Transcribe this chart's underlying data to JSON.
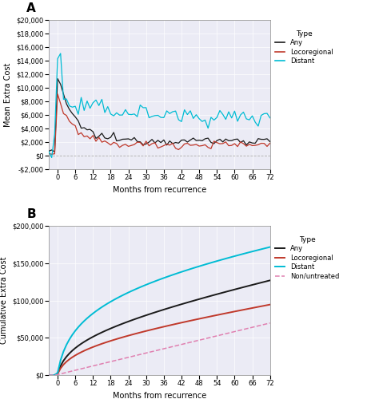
{
  "panel_a": {
    "title": "A",
    "xlabel": "Months from recurrence",
    "ylabel": "Mean Extra Cost",
    "ylim": [
      -2000,
      20000
    ],
    "xlim": [
      -3,
      72
    ],
    "yticks": [
      -2000,
      0,
      2000,
      4000,
      6000,
      8000,
      10000,
      12000,
      14000,
      16000,
      18000,
      20000
    ],
    "xticks": [
      0,
      6,
      12,
      18,
      24,
      30,
      36,
      42,
      48,
      54,
      60,
      66,
      72
    ],
    "legend_labels": [
      "Any",
      "Locoregional",
      "Distant"
    ],
    "legend_colors": [
      "#1a1a1a",
      "#c0392b",
      "#00bcd4"
    ],
    "bg_color": "#ebebf5"
  },
  "panel_b": {
    "title": "B",
    "xlabel": "Months from recurrence",
    "ylabel": "Cumulative Extra Cost",
    "ylim": [
      0,
      200000
    ],
    "xlim": [
      -3,
      72
    ],
    "yticks": [
      0,
      50000,
      100000,
      150000,
      200000
    ],
    "xticks": [
      0,
      6,
      12,
      18,
      24,
      30,
      36,
      42,
      48,
      54,
      60,
      66,
      72
    ],
    "legend_labels": [
      "Any",
      "Locoregional",
      "Distant",
      "Non/untreated"
    ],
    "legend_colors": [
      "#1a1a1a",
      "#c0392b",
      "#00bcd4",
      "#e080b0"
    ],
    "bg_color": "#ebebf5"
  }
}
